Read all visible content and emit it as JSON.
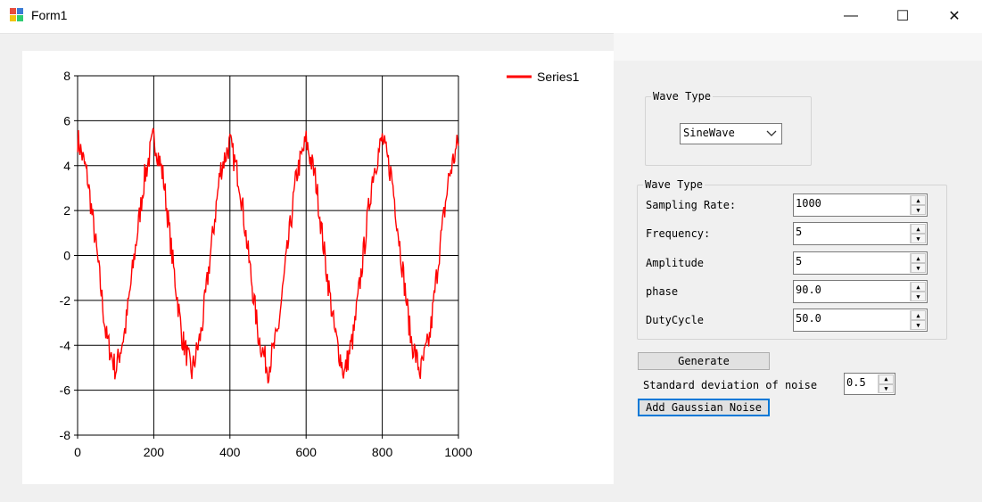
{
  "window": {
    "title": "Form1",
    "minimize_glyph": "—",
    "maximize_glyph": "☐",
    "close_glyph": "✕",
    "icon": "winforms-app-icon"
  },
  "wave_type_group": {
    "legend": "Wave Type",
    "selected": "SineWave",
    "dropdown_icon": "chevron-down-icon"
  },
  "params_group": {
    "legend": "Wave Type",
    "fields": [
      {
        "label": "Sampling Rate:",
        "value": "1000"
      },
      {
        "label": "Frequency:",
        "value": "5"
      },
      {
        "label": "Amplitude",
        "value": "5"
      },
      {
        "label": "phase",
        "value": "90.0"
      },
      {
        "label": "DutyCycle",
        "value": "50.0"
      }
    ]
  },
  "actions": {
    "generate_label": "Generate",
    "noise_label": "Standard deviation of noise",
    "noise_value": "0.5",
    "add_noise_label": "Add Gaussian Noise"
  },
  "chart_data": {
    "type": "line",
    "title": "",
    "xlabel": "",
    "ylabel": "",
    "xlim": [
      0,
      1000
    ],
    "ylim": [
      -8,
      8
    ],
    "x_ticks": [
      "0",
      "200",
      "400",
      "600",
      "800",
      "1000"
    ],
    "y_ticks": [
      "8",
      "6",
      "4",
      "2",
      "0",
      "-2",
      "-4",
      "-6",
      "-8"
    ],
    "grid": true,
    "legend_position": "top-right",
    "series": [
      {
        "name": "Series1",
        "color": "#ff0000",
        "function": "5*sin(2*pi*5*x/1000 + 90deg) + gaussian noise (sd 0.5)",
        "x": [
          0,
          25,
          50,
          75,
          100,
          125,
          150,
          175,
          200,
          225,
          250,
          275,
          300,
          325,
          350,
          375,
          400,
          425,
          450,
          475,
          500,
          525,
          550,
          575,
          600,
          625,
          650,
          675,
          700,
          725,
          750,
          775,
          800,
          825,
          850,
          875,
          900,
          925,
          950,
          975,
          1000
        ],
        "values": [
          5.2,
          3.6,
          0.2,
          -3.6,
          -5.1,
          -3.3,
          0.1,
          3.4,
          5.3,
          3.5,
          -0.3,
          -3.7,
          -5.2,
          -3.4,
          0.2,
          3.8,
          5.0,
          3.3,
          -0.2,
          -3.6,
          -5.1,
          -3.5,
          0.1,
          3.6,
          5.1,
          3.4,
          -0.2,
          -3.4,
          -5.3,
          -3.5,
          0.0,
          3.6,
          5.2,
          3.5,
          -0.1,
          -3.7,
          -5.2,
          -3.6,
          0.2,
          3.5,
          5.1
        ]
      }
    ]
  }
}
